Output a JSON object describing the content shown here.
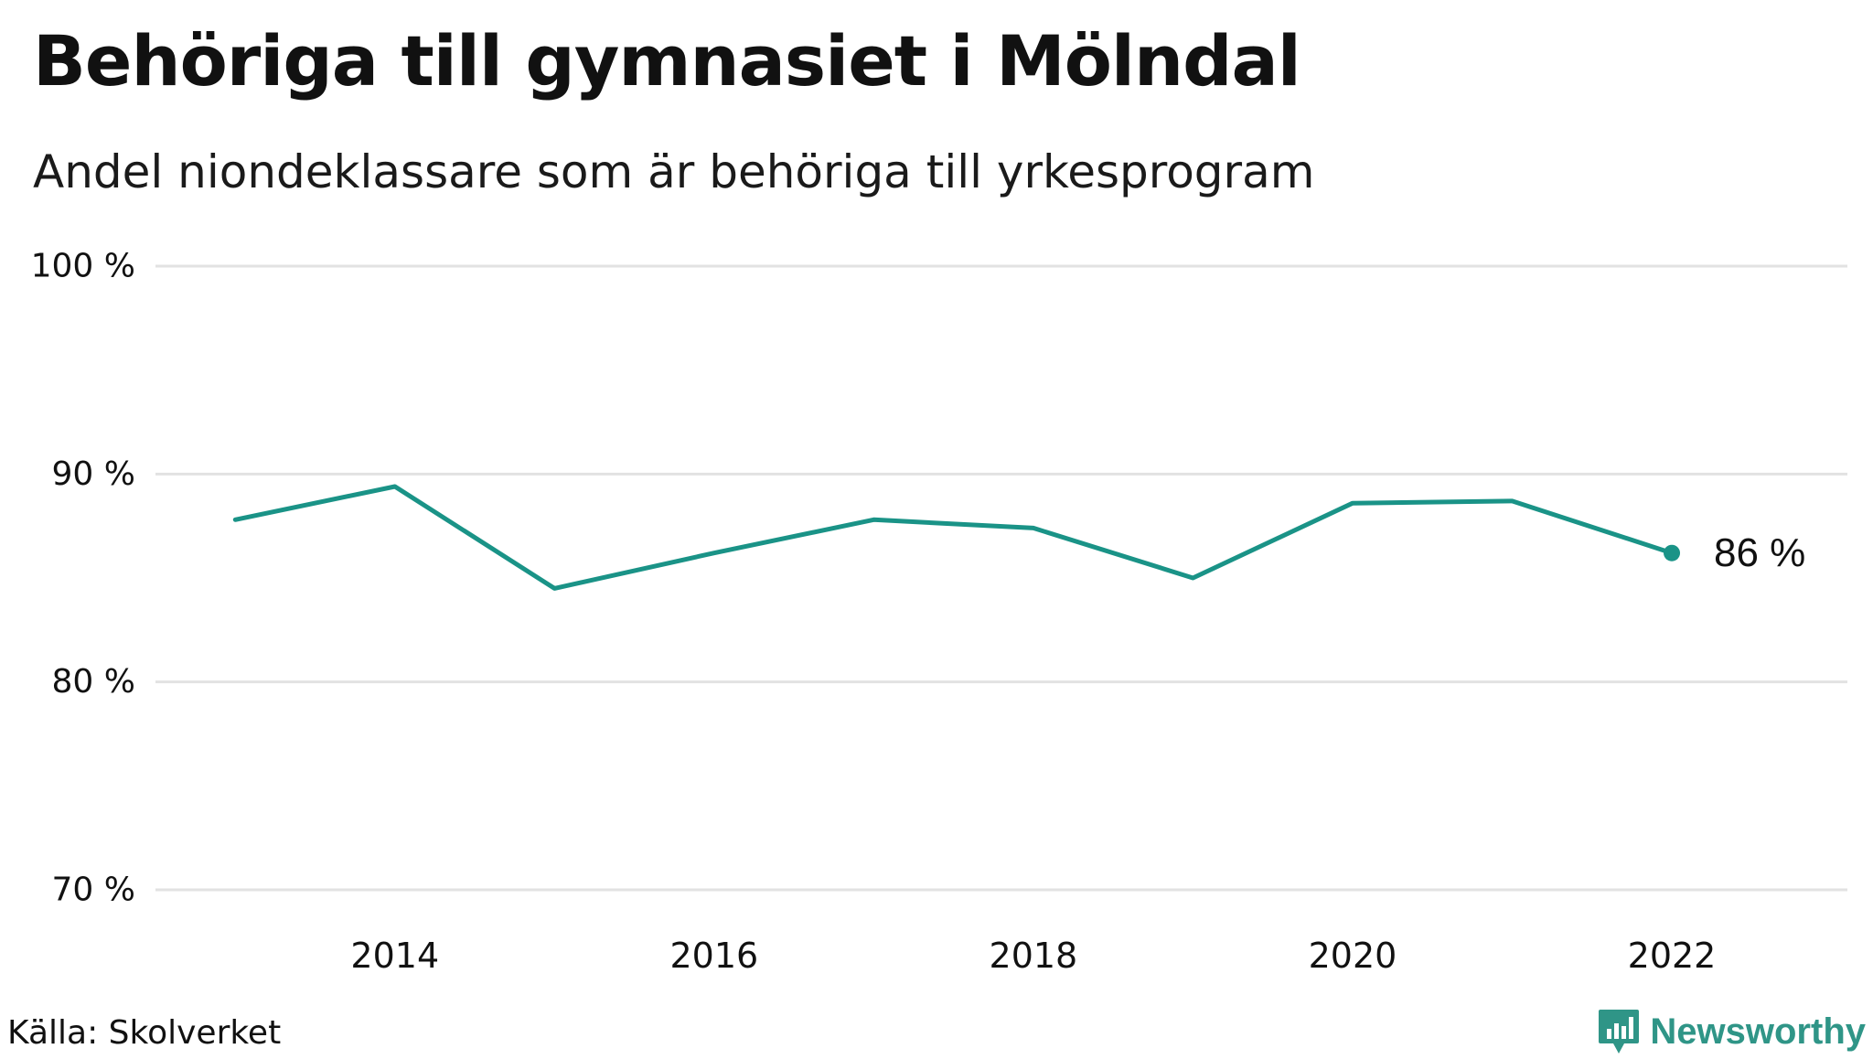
{
  "header": {
    "title": "Behöriga till gymnasiet i Mölndal",
    "subtitle": "Andel niondeklassare som är behöriga till yrkesprogram"
  },
  "footer": {
    "source": "Källa: Skolverket",
    "brand": "Newsworthy"
  },
  "colors": {
    "line": "#1a9387",
    "grid": "#e2e2e2",
    "text": "#111111",
    "brand": "#2f9587"
  },
  "chart_data": {
    "type": "line",
    "title": "Behöriga till gymnasiet i Mölndal",
    "subtitle": "Andel niondeklassare som är behöriga till yrkesprogram",
    "xlabel": "",
    "ylabel": "",
    "x": [
      2013,
      2014,
      2015,
      2016,
      2017,
      2018,
      2019,
      2020,
      2021,
      2022
    ],
    "series": [
      {
        "name": "Behöriga till yrkesprogram",
        "values": [
          87.8,
          89.4,
          84.5,
          86.2,
          87.8,
          87.4,
          85.0,
          88.6,
          88.7,
          86.2
        ]
      }
    ],
    "xlim": [
      2012.5,
      2023.1
    ],
    "ylim": [
      70,
      100
    ],
    "yticks": [
      70,
      80,
      90,
      100
    ],
    "ytick_labels": [
      "70 %",
      "80 %",
      "90 %",
      "100 %"
    ],
    "xticks": [
      2014,
      2016,
      2018,
      2020,
      2022
    ],
    "xtick_labels": [
      "2014",
      "2016",
      "2018",
      "2020",
      "2022"
    ],
    "end_label": "86  %",
    "grid": true,
    "legend": "none"
  }
}
